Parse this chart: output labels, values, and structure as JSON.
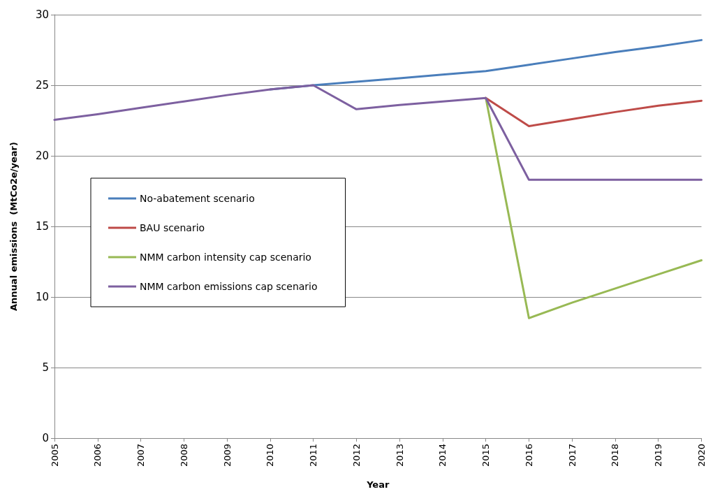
{
  "chart_data": {
    "type": "line",
    "xlabel": "Year",
    "ylabel": "Annual emissions  (MtCo2e/year)",
    "categories": [
      "2005",
      "2006",
      "2007",
      "2008",
      "2009",
      "2010",
      "2011",
      "2012",
      "2013",
      "2014",
      "2015",
      "2016",
      "2017",
      "2018",
      "2019",
      "2020"
    ],
    "series": [
      {
        "name": "No-abatement scenario",
        "color": "#4a7ebb",
        "values": [
          null,
          null,
          null,
          null,
          null,
          24.7,
          25.0,
          25.25,
          25.5,
          25.75,
          26.0,
          26.45,
          26.9,
          27.35,
          27.75,
          28.2
        ]
      },
      {
        "name": "BAU scenario",
        "color": "#be4b48",
        "values": [
          null,
          null,
          null,
          null,
          null,
          null,
          null,
          null,
          null,
          null,
          24.1,
          22.1,
          22.6,
          23.1,
          23.55,
          23.9
        ]
      },
      {
        "name": "NMM carbon intensity cap scenario",
        "color": "#98b954",
        "values": [
          null,
          null,
          null,
          null,
          null,
          null,
          null,
          null,
          null,
          null,
          24.1,
          8.5,
          9.6,
          10.6,
          11.6,
          12.6
        ]
      },
      {
        "name": "NMM carbon emissions cap scenario",
        "color": "#7d60a0",
        "values": [
          22.55,
          22.95,
          23.4,
          23.85,
          24.3,
          24.7,
          25.0,
          23.3,
          23.6,
          23.85,
          24.1,
          18.3,
          18.3,
          18.3,
          18.3,
          18.3
        ]
      }
    ],
    "ylim": [
      0,
      30
    ],
    "yticks": [
      0,
      5,
      10,
      15,
      20,
      25,
      30
    ],
    "grid": "y",
    "legend": "left",
    "marker": "none",
    "line_style": "solid"
  }
}
